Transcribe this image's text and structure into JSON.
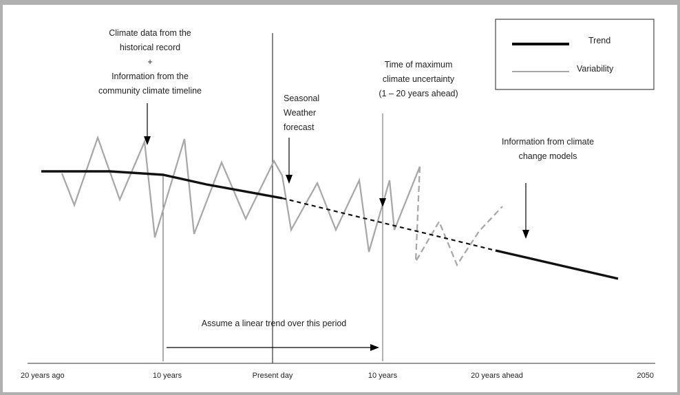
{
  "legend": {
    "trend_label": "Trend",
    "variability_label": "Variability"
  },
  "annotations": {
    "historical": [
      "Climate data from the",
      "historical record",
      "+",
      "Information from the",
      "community climate timeline"
    ],
    "seasonal": [
      "Seasonal",
      "Weather",
      "forecast"
    ],
    "uncertainty": [
      "Time of maximum",
      "climate uncertainty",
      "(1 – 20 years ahead)"
    ],
    "models": [
      "Information from climate",
      "change models"
    ],
    "linear_trend": "Assume a linear trend over this period"
  },
  "axis": {
    "ticks": [
      "20 years ago",
      "10 years",
      "Present day",
      "10 years",
      "20 years ahead",
      "2050"
    ]
  },
  "colors": {
    "trend": "#000000",
    "variability": "#a8a8a8",
    "frame": "#b0b0b0"
  }
}
